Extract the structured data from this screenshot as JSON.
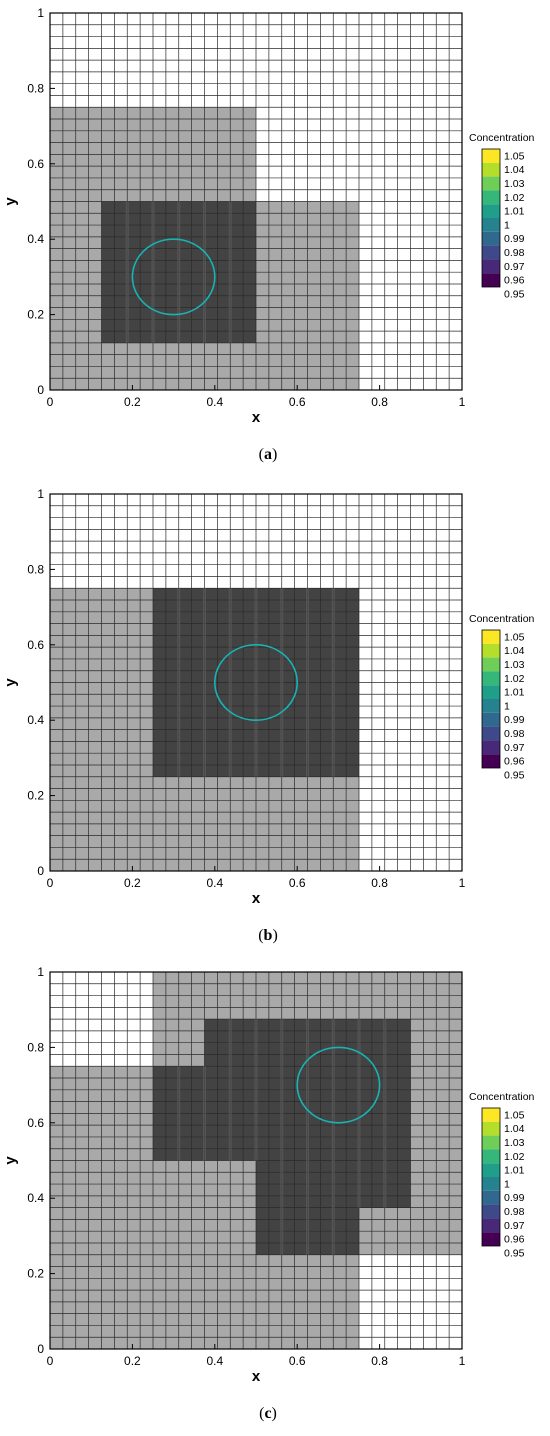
{
  "figure": {
    "panels": [
      {
        "caption_prefix": "(",
        "caption_letter": "a",
        "caption_suffix": ")"
      },
      {
        "caption_prefix": "(",
        "caption_letter": "b",
        "caption_suffix": ")"
      },
      {
        "caption_prefix": "(",
        "caption_letter": "c",
        "caption_suffix": ")"
      }
    ]
  },
  "chart_data": [
    {
      "type": "heatmap",
      "panel": "a",
      "xlabel": "x",
      "ylabel": "y",
      "xlim": [
        0,
        1
      ],
      "ylim": [
        0,
        1
      ],
      "xticks": [
        0,
        0.2,
        0.4,
        0.6,
        0.8,
        1
      ],
      "yticks": [
        0,
        0.2,
        0.4,
        0.6,
        0.8,
        1
      ],
      "xtick_labels": [
        "0",
        "0.2",
        "0.4",
        "0.6",
        "0.8",
        "1"
      ],
      "ytick_labels": [
        "0",
        "0.2",
        "0.4",
        "0.6",
        "0.8",
        "1"
      ],
      "base_mesh_size": 0.03125,
      "refined_regions": [
        {
          "x": [
            0,
            0.5
          ],
          "y": [
            0,
            0.75
          ],
          "h": 0.015625
        },
        {
          "x": [
            0.5,
            0.75
          ],
          "y": [
            0,
            0.5
          ],
          "h": 0.015625
        },
        {
          "x": [
            0.125,
            0.5
          ],
          "y": [
            0.125,
            0.5
          ],
          "h": 0.0078125
        }
      ],
      "circle": {
        "cx": 0.3,
        "cy": 0.3,
        "r": 0.1,
        "color": "#19b3b3"
      },
      "colorbar": {
        "title": "Concentration",
        "labels": [
          "1.05",
          "1.04",
          "1.03",
          "1.02",
          "1.01",
          "1",
          "0.99",
          "0.98",
          "0.97",
          "0.96",
          "0.95"
        ],
        "colors": [
          "#fde725",
          "#b5de2b",
          "#6ece58",
          "#35b779",
          "#1f9e89",
          "#26828e",
          "#31688e",
          "#3e4989",
          "#482878",
          "#440154"
        ]
      }
    },
    {
      "type": "heatmap",
      "panel": "b",
      "xlabel": "x",
      "ylabel": "y",
      "xlim": [
        0,
        1
      ],
      "ylim": [
        0,
        1
      ],
      "xticks": [
        0,
        0.2,
        0.4,
        0.6,
        0.8,
        1
      ],
      "yticks": [
        0,
        0.2,
        0.4,
        0.6,
        0.8,
        1
      ],
      "xtick_labels": [
        "0",
        "0.2",
        "0.4",
        "0.6",
        "0.8",
        "1"
      ],
      "ytick_labels": [
        "0",
        "0.2",
        "0.4",
        "0.6",
        "0.8",
        "1"
      ],
      "base_mesh_size": 0.03125,
      "refined_regions": [
        {
          "x": [
            0,
            0.75
          ],
          "y": [
            0,
            0.75
          ],
          "h": 0.015625
        },
        {
          "x": [
            0.25,
            0.75
          ],
          "y": [
            0.25,
            0.75
          ],
          "h": 0.0078125
        }
      ],
      "circle": {
        "cx": 0.5,
        "cy": 0.5,
        "r": 0.1,
        "color": "#19b3b3"
      },
      "colorbar": {
        "title": "Concentration",
        "labels": [
          "1.05",
          "1.04",
          "1.03",
          "1.02",
          "1.01",
          "1",
          "0.99",
          "0.98",
          "0.97",
          "0.96",
          "0.95"
        ],
        "colors": [
          "#fde725",
          "#b5de2b",
          "#6ece58",
          "#35b779",
          "#1f9e89",
          "#26828e",
          "#31688e",
          "#3e4989",
          "#482878",
          "#440154"
        ]
      }
    },
    {
      "type": "heatmap",
      "panel": "c",
      "xlabel": "x",
      "ylabel": "y",
      "xlim": [
        0,
        1
      ],
      "ylim": [
        0,
        1
      ],
      "xticks": [
        0,
        0.2,
        0.4,
        0.6,
        0.8,
        1
      ],
      "yticks": [
        0,
        0.2,
        0.4,
        0.6,
        0.8,
        1
      ],
      "xtick_labels": [
        "0",
        "0.2",
        "0.4",
        "0.6",
        "0.8",
        "1"
      ],
      "ytick_labels": [
        "0",
        "0.2",
        "0.4",
        "0.6",
        "0.8",
        "1"
      ],
      "base_mesh_size": 0.03125,
      "refined_regions": [
        {
          "x": [
            0,
            0.75
          ],
          "y": [
            0,
            0.75
          ],
          "h": 0.015625
        },
        {
          "x": [
            0.25,
            1
          ],
          "y": [
            0.25,
            1
          ],
          "h": 0.015625
        },
        {
          "x": [
            0.375,
            0.875
          ],
          "y": [
            0.75,
            0.875
          ],
          "h": 0.0078125
        },
        {
          "x": [
            0.25,
            0.875
          ],
          "y": [
            0.5,
            0.75
          ],
          "h": 0.0078125
        },
        {
          "x": [
            0.5,
            0.875
          ],
          "y": [
            0.375,
            0.5
          ],
          "h": 0.0078125
        },
        {
          "x": [
            0.5,
            0.75
          ],
          "y": [
            0.25,
            0.375
          ],
          "h": 0.0078125
        }
      ],
      "circle": {
        "cx": 0.7,
        "cy": 0.7,
        "r": 0.1,
        "color": "#19b3b3"
      },
      "colorbar": {
        "title": "Concentration",
        "labels": [
          "1.05",
          "1.04",
          "1.03",
          "1.02",
          "1.01",
          "1",
          "0.99",
          "0.98",
          "0.97",
          "0.96",
          "0.95"
        ],
        "colors": [
          "#fde725",
          "#b5de2b",
          "#6ece58",
          "#35b779",
          "#1f9e89",
          "#26828e",
          "#31688e",
          "#3e4989",
          "#482878",
          "#440154"
        ]
      }
    }
  ]
}
